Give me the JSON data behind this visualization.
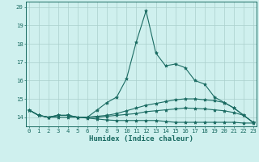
{
  "xlabel": "Humidex (Indice chaleur)",
  "ylabel": "",
  "xlim": [
    -0.3,
    23.3
  ],
  "ylim": [
    13.5,
    20.3
  ],
  "background_color": "#cff0ee",
  "grid_color": "#aacfcc",
  "line_color": "#1a6b62",
  "x": [
    0,
    1,
    2,
    3,
    4,
    5,
    6,
    7,
    8,
    9,
    10,
    11,
    12,
    13,
    14,
    15,
    16,
    17,
    18,
    19,
    20,
    21,
    22,
    23
  ],
  "line1": [
    14.4,
    14.1,
    14.0,
    14.1,
    14.1,
    14.0,
    14.0,
    14.4,
    14.8,
    15.1,
    16.1,
    18.1,
    19.8,
    17.5,
    16.8,
    16.9,
    16.7,
    16.0,
    15.8,
    15.1,
    14.8,
    14.5,
    14.1,
    13.7
  ],
  "line2": [
    14.4,
    14.1,
    14.0,
    14.1,
    14.1,
    14.0,
    14.0,
    14.05,
    14.1,
    14.2,
    14.35,
    14.5,
    14.65,
    14.75,
    14.85,
    14.95,
    15.0,
    15.0,
    14.95,
    14.9,
    14.8,
    14.5,
    14.1,
    13.7
  ],
  "line3": [
    14.4,
    14.1,
    14.0,
    14.1,
    14.1,
    14.0,
    14.0,
    14.0,
    14.05,
    14.1,
    14.15,
    14.2,
    14.3,
    14.35,
    14.4,
    14.45,
    14.5,
    14.48,
    14.45,
    14.4,
    14.35,
    14.25,
    14.1,
    13.7
  ],
  "line4": [
    14.4,
    14.1,
    14.0,
    14.0,
    14.0,
    14.0,
    13.95,
    13.9,
    13.85,
    13.82,
    13.82,
    13.82,
    13.82,
    13.82,
    13.77,
    13.72,
    13.72,
    13.72,
    13.72,
    13.72,
    13.72,
    13.72,
    13.68,
    13.68
  ],
  "yticks": [
    14,
    15,
    16,
    17,
    18,
    19,
    20
  ],
  "xticks": [
    0,
    1,
    2,
    3,
    4,
    5,
    6,
    7,
    8,
    9,
    10,
    11,
    12,
    13,
    14,
    15,
    16,
    17,
    18,
    19,
    20,
    21,
    22,
    23
  ],
  "marker": "*",
  "markersize": 3.0,
  "linewidth": 0.8,
  "tick_fontsize": 5.2,
  "xlabel_fontsize": 6.5
}
